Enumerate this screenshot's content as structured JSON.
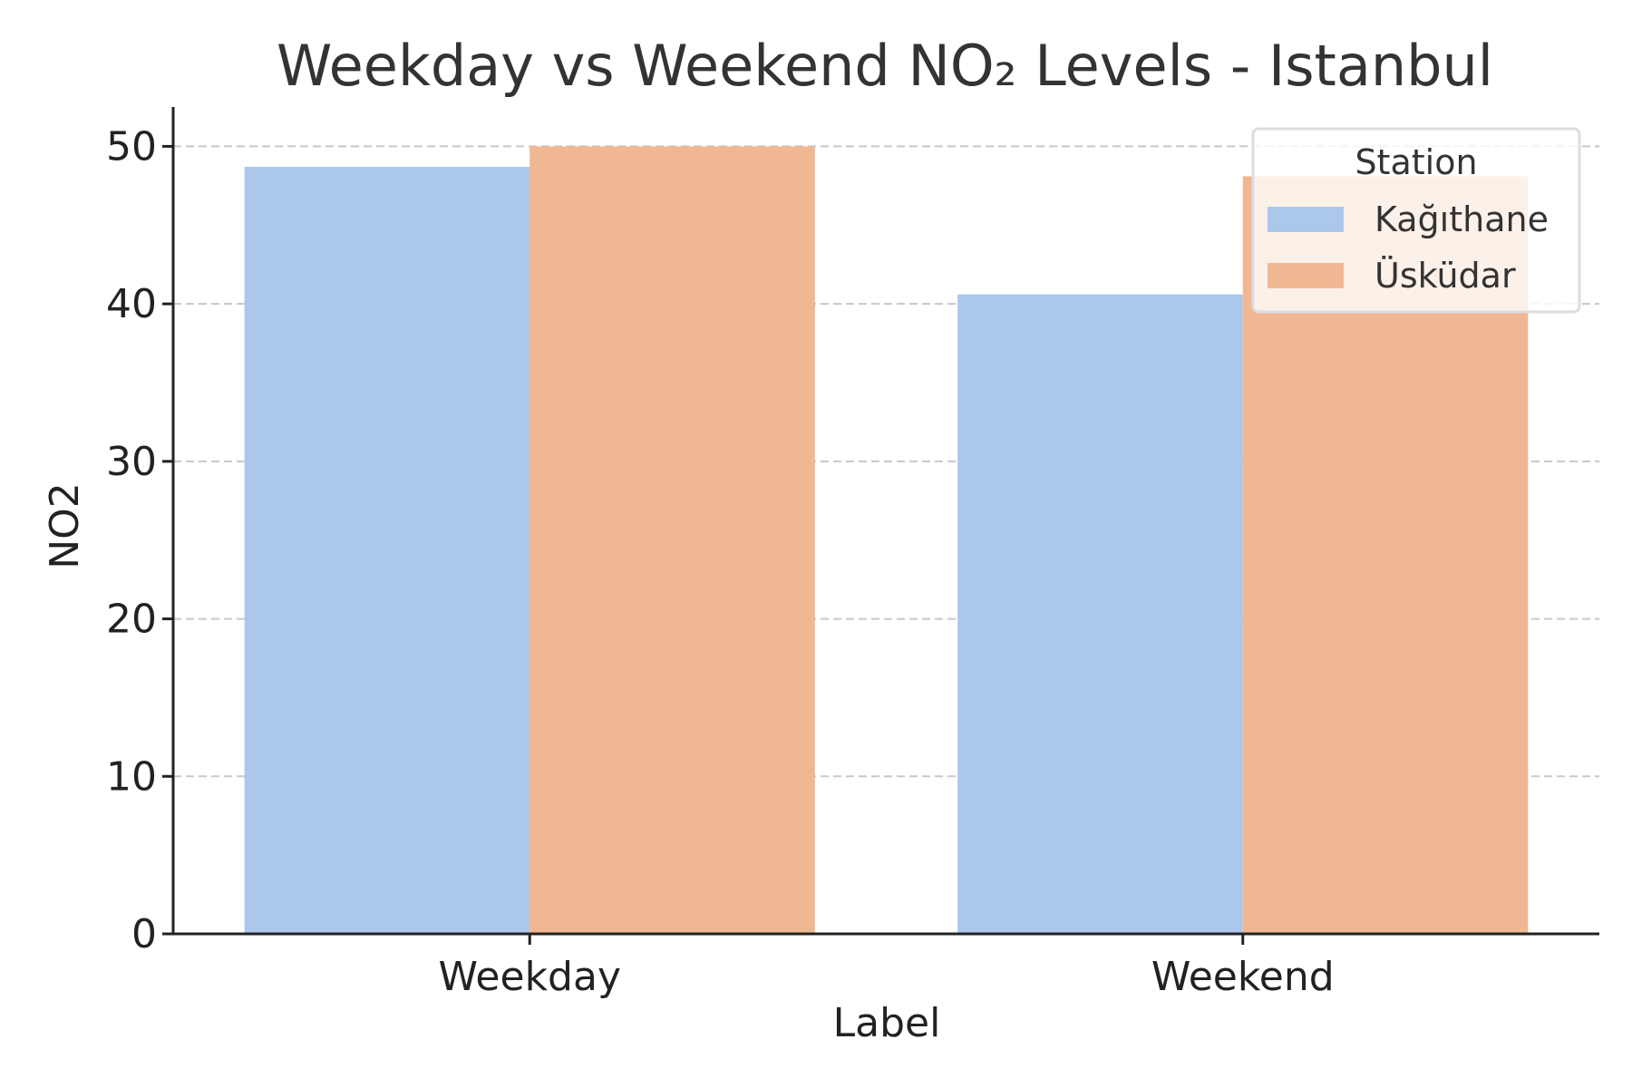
{
  "chart_data": {
    "type": "bar",
    "title": "Weekday vs Weekend NO₂ Levels - Istanbul",
    "xlabel": "Label",
    "ylabel": "NO2",
    "categories": [
      "Weekday",
      "Weekend"
    ],
    "series": [
      {
        "name": "Kağıthane",
        "values": [
          48.7,
          40.6
        ],
        "color": "#abc8ec"
      },
      {
        "name": "Üsküdar",
        "values": [
          50.0,
          48.1
        ],
        "color": "#f0b793"
      }
    ],
    "ylim": [
      0,
      52.5
    ],
    "yticks": [
      0,
      10,
      20,
      30,
      40,
      50
    ],
    "grid": true,
    "legend": {
      "title": "Station",
      "placement": "top-right"
    }
  }
}
